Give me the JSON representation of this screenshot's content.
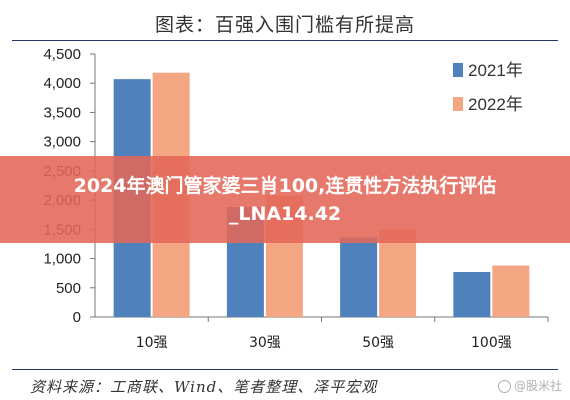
{
  "header": {
    "title": "图表：百强入围门槛有所提高"
  },
  "banner": {
    "text": "2024年澳门管家婆三肖100,连贯性方法执行评估_LNA14.42"
  },
  "footer": {
    "source": "资料来源：工商联、Wind、笔者整理、泽平宏观",
    "watermark": "@股米社"
  },
  "chart_data": {
    "type": "bar",
    "title": "图表：百强入围门槛有所提高",
    "categories": [
      "10强",
      "30强",
      "50强",
      "100强"
    ],
    "series": [
      {
        "name": "2021年",
        "values": [
          4070,
          1880,
          1360,
          770
        ],
        "color": "#4f81bd"
      },
      {
        "name": "2022年",
        "values": [
          4180,
          2080,
          1500,
          880
        ],
        "color": "#f4a582"
      }
    ],
    "yticks": [
      "0",
      "500",
      "1,000",
      "1,500",
      "2,000",
      "2,500",
      "3,000",
      "3,500",
      "4,000",
      "4,500"
    ],
    "ylim": [
      0,
      4500
    ],
    "xlabel": "",
    "ylabel": "",
    "grid": false,
    "legend_position": "top-right"
  }
}
